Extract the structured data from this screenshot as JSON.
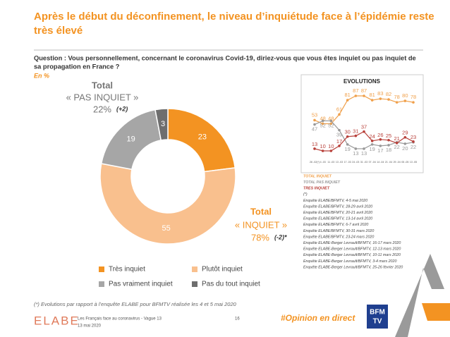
{
  "header": {
    "title_line1": "Après le début du déconfinement, le niveau d’inquiétude face à l’épidémie reste",
    "title_line2": "très élevé",
    "question_line1": "Question : Vous personnellement, concernant le coronavirus Covid-19, diriez-vous que vous êtes inquiet ou pas inquiet de",
    "question_line2": "sa propagation en France ?",
    "unit": "En %"
  },
  "totals": {
    "pas_inquiet": {
      "line1": "Total",
      "line2": "« PAS INQUIET »",
      "pct": "22%",
      "change": "(+2)"
    },
    "inquiet": {
      "line1": "Total",
      "line2": "« INQUIET »",
      "pct": "78%",
      "change": "(-2)*"
    }
  },
  "chart_data": [
    {
      "type": "donut",
      "categories": [
        "Très inquiet",
        "Plutôt inquiet",
        "Pas vraiment inquiet",
        "Pas du tout inquiet"
      ],
      "values": [
        23,
        55,
        19,
        3
      ],
      "colors": [
        "#f39322",
        "#f9c08e",
        "#a6a6a6",
        "#6e6e6e"
      ]
    },
    {
      "type": "line",
      "title": "EVOLUTIONS",
      "categories": [
        "26 -02(*)",
        "4 -03",
        "11 -03",
        "13 -03",
        "17 -03",
        "24 -03",
        "31 -03",
        "07 -04",
        "14 -04",
        "21 -04",
        "29 -04",
        "05 -05",
        "13 -05"
      ],
      "series": [
        {
          "name": "TOTAL INQUIET",
          "color": "#f0a04b",
          "values": [
            53,
            48,
            48,
            61,
            81,
            87,
            87,
            81,
            83,
            82,
            78,
            80,
            78
          ]
        },
        {
          "name": "TOTAL PAS INQUIET",
          "color": "#999999",
          "values": [
            47,
            52,
            52,
            39,
            19,
            13,
            13,
            19,
            17,
            18,
            22,
            20,
            22
          ]
        },
        {
          "name": "TRES INQUIET",
          "color": "#b8403a",
          "values": [
            13,
            10,
            10,
            17,
            30,
            31,
            37,
            24,
            26,
            25,
            21,
            29,
            23
          ]
        }
      ]
    }
  ],
  "sources": [
    "(*)",
    "Enquête ELABE/BFMTV, 4-5 mai 2020",
    "Enquête ELABE/BFMTV, 28-29 avril 2020",
    "Enquête ELABE/BFMTV, 20-21 avril 2020",
    "Enquête ELABE/BFMTV, 13-14 avril 2020",
    "Enquête ELABE/BFMTV, 6-7 avril 2020",
    "Enquête ELABE/BFMTV, 30-31 mars 2020",
    "Enquête ELABE/BFMTV, 23-24 mars 2020",
    "Enquête ELABE-Berger Levrault/BFMTV, 16-17 mars 2020",
    "Enquête ELABE-Berger Levrault/BFMTV, 12-13 mars 2020",
    "Enquête ELABE-Berger Levrault/BFMTV, 10-11 mars 2020",
    "Enquête ELABE-Berger Levrault/BFMTV, 3-4 mars 2020",
    "Enquête ELABE-Berger Levrault/BFMTV, 25-26 février 2020"
  ],
  "footnote": "(*) Evolutions par rapport à l’enquête ELABE pour BFMTV réalisée les 4 et 5 mai 2020",
  "footer": {
    "logo": "ELABE",
    "study": "Les Français face au coronavirus - Vague 13",
    "date": "13 mai 2020",
    "page": "16",
    "hashtag": "#Opinion en direct",
    "partner_line1": "BFM",
    "partner_line2": "TV"
  }
}
